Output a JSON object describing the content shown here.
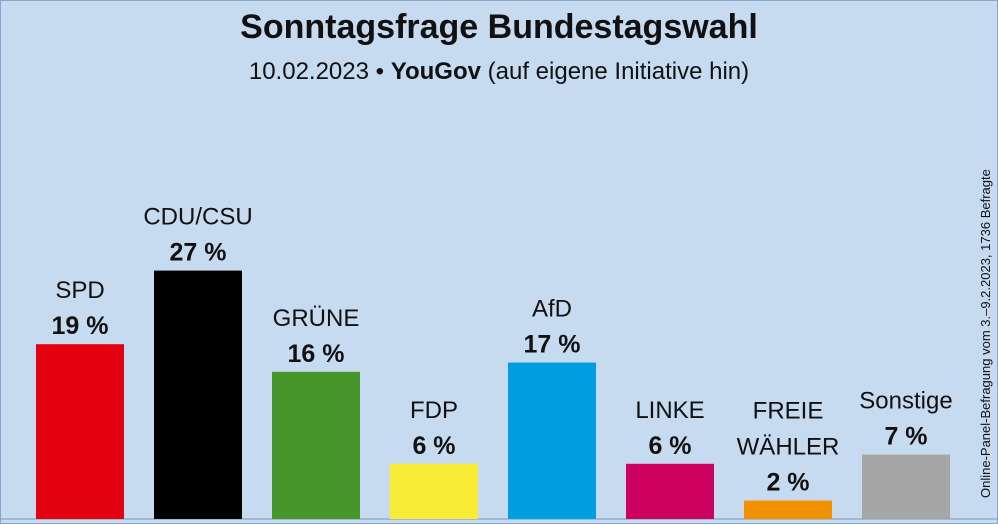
{
  "header": {
    "title": "Sonntagsfrage Bundestagswahl",
    "date": "10.02.2023",
    "bullet": "•",
    "pollster": "YouGov",
    "note": "(auf eigene Initiative hin)"
  },
  "side_note": "Online-Panel-Befragung vom 3.–9.2.2023, 1736 Befragte",
  "chart_data": {
    "type": "bar",
    "title": "Sonntagsfrage Bundestagswahl",
    "xlabel": "",
    "ylabel": "",
    "ylim": [
      0,
      30
    ],
    "categories": [
      "SPD",
      "CDU/CSU",
      "GRÜNE",
      "FDP",
      "AfD",
      "LINKE",
      "FREIE WÄHLER",
      "Sonstige"
    ],
    "category_lines": [
      [
        "SPD"
      ],
      [
        "CDU/CSU"
      ],
      [
        "GRÜNE"
      ],
      [
        "FDP"
      ],
      [
        "AfD"
      ],
      [
        "LINKE"
      ],
      [
        "FREIE",
        "WÄHLER"
      ],
      [
        "Sonstige"
      ]
    ],
    "values": [
      19,
      27,
      16,
      6,
      17,
      6,
      2,
      7
    ],
    "value_labels": [
      "19 %",
      "27 %",
      "16 %",
      "6 %",
      "17 %",
      "6 %",
      "2 %",
      "7 %"
    ],
    "colors": [
      "#e3000f",
      "#000000",
      "#46962b",
      "#f8ec36",
      "#009ee0",
      "#cc005f",
      "#f39200",
      "#a6a6a6"
    ]
  }
}
